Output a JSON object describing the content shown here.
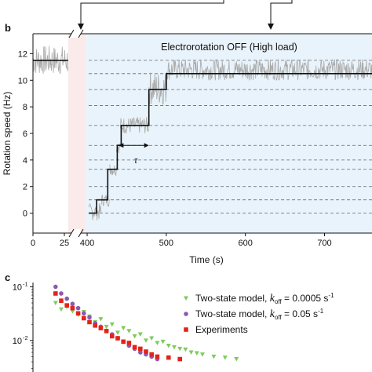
{
  "panels": {
    "b_label": "b",
    "c_label": "c"
  },
  "chart_data": [
    {
      "type": "line",
      "panel": "b",
      "annotation": "Electrorotation OFF (High load)",
      "tau_label": "τ",
      "xlabel": "Time (s)",
      "ylabel": "Rotation speed (Hz)",
      "x_ticks": [
        "0",
        "25",
        "400",
        "500",
        "600",
        "700"
      ],
      "y_ticks": [
        "0",
        "2",
        "4",
        "6",
        "8",
        "10",
        "12"
      ],
      "xlim_left_segment": [
        0,
        30
      ],
      "xlim_right_segment": [
        395,
        760
      ],
      "ylim": [
        -1.5,
        13.5
      ],
      "dashed_levels": [
        0,
        1,
        2,
        3.3,
        4,
        5.1,
        6.6,
        8.1,
        9.3,
        10.5,
        11.5
      ],
      "grid": false,
      "series": [
        {
          "role": "raw trace",
          "color": "#a9aaa9",
          "segments": [
            {
              "x_start": 0,
              "x_end": 28,
              "mean": 11.5,
              "noise": 0.7
            },
            {
              "x_start": 402,
              "x_end": 418,
              "mean": 0.1,
              "noise": 0.4
            },
            {
              "x_start": 418,
              "x_end": 428,
              "mean": 1.0,
              "noise": 0.3
            },
            {
              "x_start": 428,
              "x_end": 437,
              "mean": 3.3,
              "noise": 0.3
            },
            {
              "x_start": 437,
              "x_end": 442,
              "mean": 5.0,
              "noise": 0.3
            },
            {
              "x_start": 442,
              "x_end": 478,
              "mean": 6.6,
              "noise": 0.4
            },
            {
              "x_start": 478,
              "x_end": 500,
              "mean": 9.4,
              "noise": 0.8
            },
            {
              "x_start": 500,
              "x_end": 760,
              "mean": 10.8,
              "noise": 0.5
            }
          ]
        },
        {
          "role": "step fit",
          "color": "#111111",
          "x": [
            0,
            28,
            402,
            412,
            412,
            426,
            426,
            438,
            438,
            443,
            443,
            478,
            478,
            500,
            500,
            760
          ],
          "y": [
            11.5,
            11.5,
            0,
            0,
            1,
            1,
            3.3,
            3.3,
            5.1,
            5.1,
            6.6,
            6.6,
            9.3,
            9.3,
            10.5,
            10.5
          ]
        }
      ],
      "tau_interval": [
        440,
        478
      ],
      "tau_level": 5.1,
      "shading": {
        "gap_color": "#fbeaea",
        "off_region_color": "#e9f3fb"
      },
      "arrows_from_top": [
        103,
        345
      ]
    },
    {
      "type": "scatter",
      "panel": "c",
      "y_scale": "log",
      "y_ticks": [
        "10",
        "10"
      ],
      "y_tick_exponents": [
        "-1",
        "-2"
      ],
      "y_tick_values": [
        0.1,
        0.01
      ],
      "ylim_log": [
        -2.7,
        -0.95
      ],
      "xlim": [
        0,
        300
      ],
      "legend_position": "top-right",
      "series": [
        {
          "name_prefix": "Two-state model, ",
          "name_math": "k",
          "name_sub": "off",
          "name_suffix": " = 0.0005 s",
          "name_sup": "-1",
          "marker": "triangle-down",
          "color": "#7ecb5c",
          "x": [
            20,
            25,
            30,
            35,
            40,
            45,
            50,
            55,
            60,
            65,
            70,
            75,
            80,
            85,
            90,
            95,
            100,
            105,
            110,
            115,
            120,
            125,
            130,
            135,
            140,
            145,
            150,
            160,
            170,
            180
          ],
          "y": [
            0.05,
            0.038,
            0.042,
            0.035,
            0.03,
            0.034,
            0.028,
            0.022,
            0.025,
            0.018,
            0.02,
            0.014,
            0.017,
            0.015,
            0.012,
            0.013,
            0.01,
            0.011,
            0.009,
            0.0095,
            0.008,
            0.0075,
            0.007,
            0.0068,
            0.006,
            0.0058,
            0.0055,
            0.005,
            0.0048,
            0.0045
          ]
        },
        {
          "name_prefix": "Two-state model, ",
          "name_math": "k",
          "name_sub": "off",
          "name_suffix": " = 0.05 s",
          "name_sup": "-1",
          "marker": "circle",
          "color": "#8b59b4",
          "x": [
            20,
            25,
            30,
            35,
            40,
            45,
            50,
            55,
            60,
            65,
            70,
            75,
            80,
            85,
            90,
            95,
            100,
            105,
            110
          ],
          "y": [
            0.1,
            0.075,
            0.06,
            0.048,
            0.04,
            0.032,
            0.027,
            0.021,
            0.018,
            0.015,
            0.013,
            0.011,
            0.0095,
            0.008,
            0.007,
            0.006,
            0.0055,
            0.005,
            0.0045
          ]
        },
        {
          "name": "Experiments",
          "marker": "square",
          "color": "#e2231a",
          "x": [
            20,
            25,
            30,
            35,
            40,
            45,
            50,
            55,
            60,
            65,
            70,
            75,
            80,
            85,
            90,
            95,
            100,
            105,
            110,
            120,
            130
          ],
          "y": [
            0.075,
            0.055,
            0.045,
            0.04,
            0.032,
            0.026,
            0.022,
            0.019,
            0.017,
            0.015,
            0.012,
            0.011,
            0.0095,
            0.009,
            0.0075,
            0.007,
            0.0062,
            0.0055,
            0.005,
            0.0048,
            0.0045
          ]
        }
      ]
    }
  ]
}
